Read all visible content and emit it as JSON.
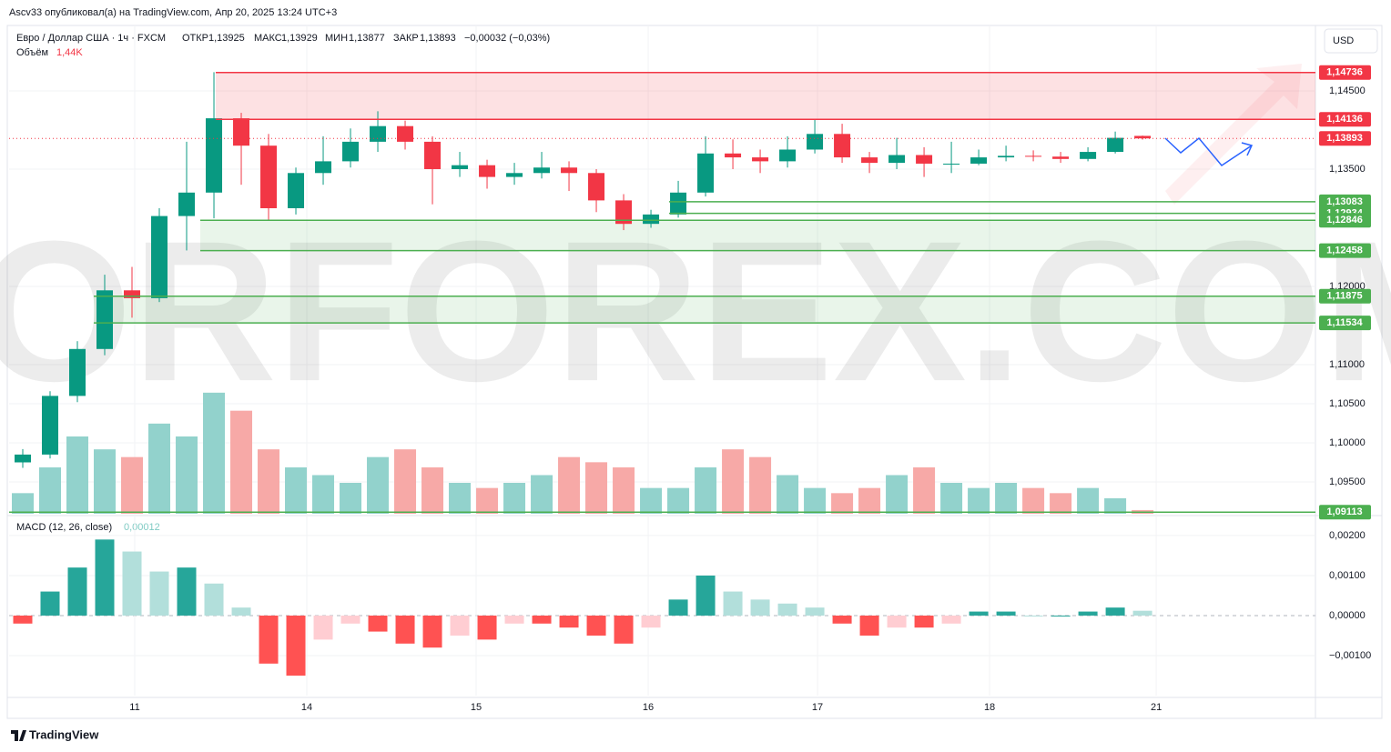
{
  "header": {
    "author": "Ascv33 опубликовал(а) на TradingView.com, Апр 20, 2025 13:24 UTC+3",
    "symbol": "Евро / Доллар США · 1ч · FXCM",
    "open_label": "ОТКР",
    "open": "1,13925",
    "high_label": "МАКС",
    "high": "1,13929",
    "low_label": "МИН",
    "low": "1,13877",
    "close_label": "ЗАКР",
    "close": "1,13893",
    "change": "−0,00032 (−0,03%)",
    "currency": "USD",
    "watermark": "TORFOREX.COM",
    "footer": "TradingView"
  },
  "chart_data": {
    "type": "candlestick",
    "open": [
      1.0975,
      1.0985,
      1.106,
      1.112,
      1.1195,
      1.1185,
      1.129,
      1.132,
      1.1415,
      1.138,
      1.13,
      1.1345,
      1.136,
      1.1385,
      1.1405,
      1.1385,
      1.135,
      1.1355,
      1.134,
      1.1345,
      1.1352,
      1.1345,
      1.131,
      1.128,
      1.1292,
      1.132,
      1.137,
      1.1365,
      1.136,
      1.1375,
      1.1395,
      1.1365,
      1.1358,
      1.1368,
      1.1357,
      1.1357,
      1.1365,
      1.1367,
      1.1366,
      1.1363,
      1.1372,
      1.13925
    ],
    "high": [
      1.0992,
      1.1066,
      1.113,
      1.1215,
      1.1225,
      1.13,
      1.1385,
      1.1474,
      1.1422,
      1.1395,
      1.1352,
      1.1392,
      1.1402,
      1.1424,
      1.1412,
      1.1392,
      1.1372,
      1.1362,
      1.1358,
      1.1372,
      1.136,
      1.135,
      1.1318,
      1.1298,
      1.1335,
      1.1392,
      1.1388,
      1.1375,
      1.1392,
      1.1414,
      1.1408,
      1.1372,
      1.139,
      1.1378,
      1.1385,
      1.1375,
      1.138,
      1.1374,
      1.1372,
      1.1378,
      1.1398,
      1.13929
    ],
    "low": [
      1.0968,
      1.098,
      1.1052,
      1.1112,
      1.116,
      1.118,
      1.1246,
      1.1287,
      1.133,
      1.1285,
      1.1292,
      1.133,
      1.1352,
      1.1372,
      1.1375,
      1.1305,
      1.134,
      1.1325,
      1.133,
      1.1338,
      1.1322,
      1.1295,
      1.1272,
      1.1275,
      1.1288,
      1.1315,
      1.135,
      1.1345,
      1.1352,
      1.137,
      1.1358,
      1.1345,
      1.135,
      1.134,
      1.1345,
      1.1355,
      1.136,
      1.136,
      1.1358,
      1.136,
      1.137,
      1.13877
    ],
    "close": [
      1.0985,
      1.106,
      1.112,
      1.1195,
      1.1185,
      1.129,
      1.132,
      1.1415,
      1.138,
      1.13,
      1.1345,
      1.136,
      1.1385,
      1.1405,
      1.1385,
      1.135,
      1.1355,
      1.134,
      1.1345,
      1.1352,
      1.1345,
      1.131,
      1.128,
      1.1292,
      1.132,
      1.137,
      1.1365,
      1.136,
      1.1375,
      1.1395,
      1.1365,
      1.1358,
      1.1368,
      1.1357,
      1.1357,
      1.1365,
      1.1367,
      1.1366,
      1.1363,
      1.1372,
      1.139,
      1.13893
    ],
    "up_color": "#089981",
    "down_color": "#f23645",
    "ylim": [
      1.09093,
      1.15337
    ],
    "yticks": [
      {
        "value": 1.145,
        "label": "1,14500"
      },
      {
        "value": 1.135,
        "label": "1,13500"
      },
      {
        "value": 1.12,
        "label": "1,12000"
      },
      {
        "value": 1.11,
        "label": "1,11000"
      },
      {
        "value": 1.105,
        "label": "1,10500"
      },
      {
        "value": 1.1,
        "label": "1,10000"
      },
      {
        "value": 1.095,
        "label": "1,09500"
      }
    ],
    "xlim": [
      -0.5,
      47.33
    ],
    "xticks": [
      {
        "value": 4.1,
        "label": "11"
      },
      {
        "value": 10.4,
        "label": "14"
      },
      {
        "value": 16.6,
        "label": "15"
      },
      {
        "value": 22.9,
        "label": "16"
      },
      {
        "value": 29.1,
        "label": "17"
      },
      {
        "value": 35.4,
        "label": "18"
      },
      {
        "value": 41.5,
        "label": "21"
      }
    ],
    "levels": [
      {
        "value": 1.14736,
        "label": "1,14736",
        "color": "#f23645"
      },
      {
        "value": 1.14136,
        "label": "1,14136",
        "color": "#f23645"
      },
      {
        "value": 1.13893,
        "label": "1,13893",
        "color": "#f23645"
      },
      {
        "value": 1.13083,
        "label": "1,13083",
        "color": "#4caf50"
      },
      {
        "value": 1.12934,
        "label": "1,12934",
        "color": "#4caf50"
      },
      {
        "value": 1.12846,
        "label": "1,12846",
        "color": "#4caf50"
      },
      {
        "value": 1.12458,
        "label": "1,12458",
        "color": "#4caf50"
      },
      {
        "value": 1.11875,
        "label": "1,11875",
        "color": "#4caf50"
      },
      {
        "value": 1.11534,
        "label": "1,11534",
        "color": "#4caf50"
      },
      {
        "value": 1.09113,
        "label": "1,09113",
        "color": "#4caf50"
      }
    ],
    "volume": {
      "name": "Объём",
      "legend_value": "1,44K",
      "values": [
        8,
        18,
        30,
        25,
        22,
        35,
        30,
        47,
        40,
        25,
        18,
        15,
        12,
        22,
        25,
        18,
        12,
        10,
        12,
        15,
        22,
        20,
        18,
        10,
        10,
        18,
        25,
        22,
        15,
        10,
        8,
        10,
        15,
        18,
        12,
        10,
        12,
        10,
        8,
        10,
        6,
        1.44
      ],
      "ylim": [
        0,
        60
      ],
      "up_color": "#92d2cc",
      "down_color": "#f7a9a7"
    },
    "macd": {
      "name": "MACD (12, 26, close)",
      "legend_value": "0,00012",
      "values": [
        -0.0002,
        0.0006,
        0.0012,
        0.0019,
        0.0016,
        0.0011,
        0.0012,
        0.0008,
        0.0002,
        -0.0012,
        -0.0015,
        -0.0006,
        -0.0002,
        -0.0004,
        -0.0007,
        -0.0008,
        -0.0005,
        -0.0006,
        -0.0002,
        -0.0002,
        -0.0003,
        -0.0005,
        -0.0007,
        -0.0003,
        0.0004,
        0.001,
        0.0006,
        0.0004,
        0.0003,
        0.0002,
        -0.0002,
        -0.0005,
        -0.0003,
        -0.0003,
        -0.0002,
        0.0001,
        0.0001,
        0,
        0,
        0.0001,
        0.0002,
        0.00012
      ],
      "ylim": [
        -0.002,
        0.00243
      ],
      "yticks": [
        {
          "value": 0.002,
          "label": "0,00200"
        },
        {
          "value": 0.001,
          "label": "0,00100"
        },
        {
          "value": 0,
          "label": "0,00000"
        },
        {
          "value": -0.001,
          "label": "−0,00100"
        }
      ]
    }
  }
}
